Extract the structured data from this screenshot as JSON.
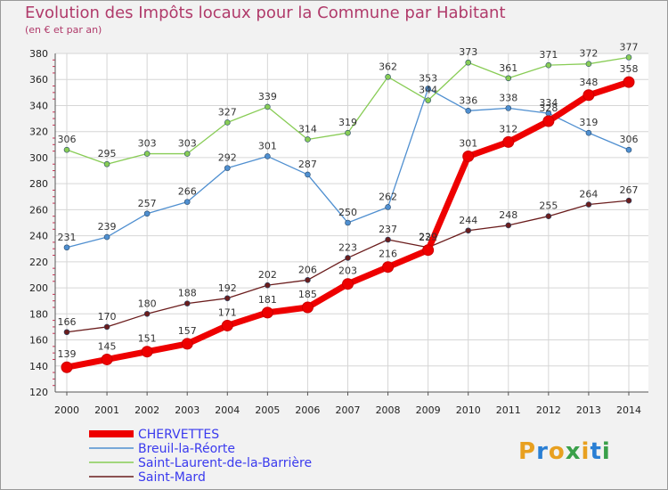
{
  "title": "Evolution des Impôts locaux pour la Commune par Habitant",
  "subtitle": "(en € et par an)",
  "logo": {
    "text": "Proxiti",
    "colors": [
      "#e8a020",
      "#2a7fd4",
      "#e8a020",
      "#3aa04a",
      "#e8a020",
      "#2a7fd4",
      "#3aa04a"
    ]
  },
  "chart_data": {
    "type": "line",
    "x": [
      "2000",
      "2001",
      "2002",
      "2003",
      "2004",
      "2005",
      "2006",
      "2007",
      "2008",
      "2009",
      "2010",
      "2011",
      "2012",
      "2013",
      "2014"
    ],
    "ylim": [
      120,
      380
    ],
    "yticks": [
      "120",
      "140",
      "160",
      "180",
      "200",
      "220",
      "240",
      "260",
      "280",
      "300",
      "320",
      "340",
      "360",
      "380"
    ],
    "grid": true,
    "series": [
      {
        "name": "CHERVETTES",
        "color": "#ee0000",
        "values": [
          139,
          145,
          151,
          157,
          171,
          181,
          185,
          203,
          216,
          229,
          301,
          312,
          328,
          348,
          358
        ],
        "labels": [
          "139",
          "145",
          "151",
          "157",
          "171",
          "181",
          "185",
          "203",
          "216",
          "229",
          "301",
          "312",
          "328",
          "348",
          "358"
        ]
      },
      {
        "name": "Breuil-la-Réorte",
        "color": "#4f8fd0",
        "values": [
          231,
          239,
          257,
          266,
          292,
          301,
          287,
          250,
          262,
          353,
          336,
          338,
          334,
          319,
          306
        ],
        "labels": [
          "231",
          "239",
          "257",
          "266",
          "292",
          "301",
          "287",
          "250",
          "262",
          "353",
          "336",
          "338",
          "334",
          "319",
          "306"
        ]
      },
      {
        "name": "Saint-Laurent-de-la-Barrière",
        "color": "#88cc55",
        "values": [
          306,
          295,
          303,
          303,
          327,
          339,
          314,
          319,
          362,
          344,
          373,
          361,
          371,
          372,
          377
        ],
        "labels": [
          "306",
          "295",
          "303",
          "303",
          "327",
          "339",
          "314",
          "319",
          "362",
          "344",
          "373",
          "361",
          "371",
          "372",
          "377"
        ]
      },
      {
        "name": "Saint-Mard",
        "color": "#6b1d1d",
        "values": [
          166,
          170,
          180,
          188,
          192,
          202,
          206,
          223,
          237,
          231,
          244,
          248,
          255,
          264,
          267
        ],
        "labels": [
          "166",
          "170",
          "180",
          "188",
          "192",
          "202",
          "206",
          "223",
          "237",
          "231",
          "244",
          "248",
          "255",
          "264",
          "267"
        ]
      }
    ]
  }
}
